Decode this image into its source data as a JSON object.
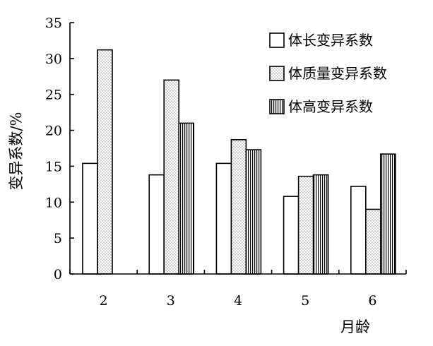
{
  "chart_data": {
    "type": "bar",
    "title": "",
    "xlabel": "月龄",
    "ylabel": "变异系数/%",
    "categories": [
      "2",
      "3",
      "4",
      "5",
      "6"
    ],
    "ylim": [
      0,
      35
    ],
    "yticks": [
      0,
      5,
      10,
      15,
      20,
      25,
      30,
      35
    ],
    "grid": false,
    "legend_position": "top-right",
    "series": [
      {
        "name": "体长变异系数",
        "pattern": "white",
        "values": [
          15.4,
          13.8,
          15.4,
          10.8,
          12.2
        ]
      },
      {
        "name": "体质量变异系数",
        "pattern": "dots",
        "values": [
          31.2,
          27.0,
          18.7,
          13.6,
          9.0
        ]
      },
      {
        "name": "体高变异系数",
        "pattern": "vertical-stripes",
        "values": [
          null,
          21.0,
          17.3,
          13.8,
          16.7
        ]
      }
    ]
  }
}
